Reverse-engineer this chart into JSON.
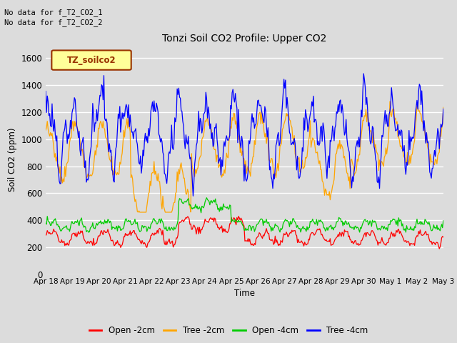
{
  "title": "Tonzi Soil CO2 Profile: Upper CO2",
  "ylabel": "Soil CO2 (ppm)",
  "xlabel": "Time",
  "no_data_text": [
    "No data for f_T2_CO2_1",
    "No data for f_T2_CO2_2"
  ],
  "legend_label_text": "TZ_soilco2",
  "ylim": [
    0,
    1700
  ],
  "yticks": [
    0,
    200,
    400,
    600,
    800,
    1000,
    1200,
    1400,
    1600
  ],
  "xtick_labels": [
    "Apr 18",
    "Apr 19",
    "Apr 20",
    "Apr 21",
    "Apr 22",
    "Apr 23",
    "Apr 24",
    "Apr 25",
    "Apr 26",
    "Apr 27",
    "Apr 28",
    "Apr 29",
    "Apr 30",
    "May 1",
    "May 2",
    "May 3"
  ],
  "colors": {
    "open_2cm": "#FF0000",
    "tree_2cm": "#FFA500",
    "open_4cm": "#00CC00",
    "tree_4cm": "#0000FF"
  },
  "legend_entries": [
    "Open -2cm",
    "Tree -2cm",
    "Open -4cm",
    "Tree -4cm"
  ],
  "plot_bg_color": "#DCDCDC",
  "grid_color": "#FFFFFF",
  "fig_bg_color": "#DCDCDC",
  "n_points": 500
}
